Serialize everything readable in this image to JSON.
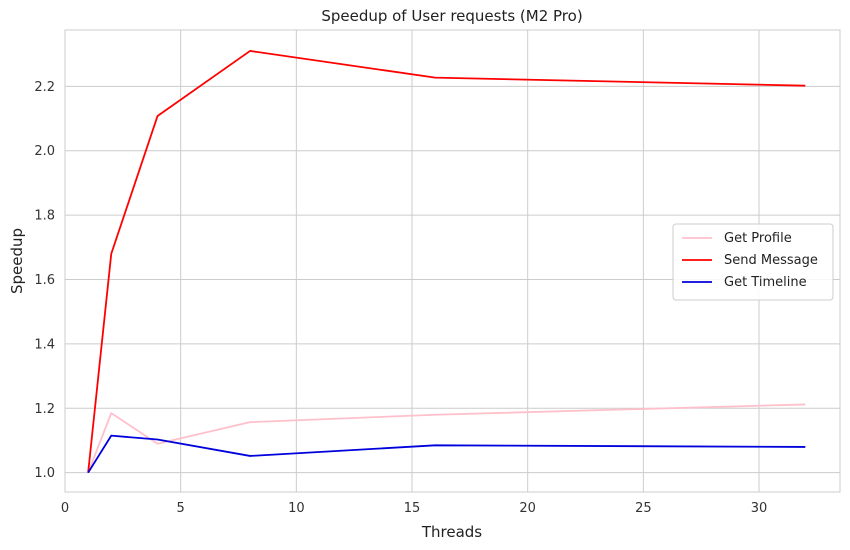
{
  "chart_data": {
    "type": "line",
    "title": "Speedup of User requests (M2 Pro)",
    "xlabel": "Threads",
    "ylabel": "Speedup",
    "xlim": [
      0,
      33.5
    ],
    "ylim": [
      0.94,
      2.375
    ],
    "xticks": [
      0,
      5,
      10,
      15,
      20,
      25,
      30
    ],
    "yticks": [
      1.0,
      1.2,
      1.4,
      1.6,
      1.8,
      2.0,
      2.2
    ],
    "grid": true,
    "legend_position": "center-right",
    "x": [
      1,
      2,
      4,
      8,
      16,
      32
    ],
    "series": [
      {
        "name": "Get Profile",
        "color": "#ffc0cb",
        "values": [
          1.0,
          1.185,
          1.09,
          1.157,
          1.18,
          1.212
        ]
      },
      {
        "name": "Send Message",
        "color": "#ff0000",
        "values": [
          1.0,
          1.68,
          2.108,
          2.31,
          2.227,
          2.202
        ]
      },
      {
        "name": "Get Timeline",
        "color": "#0000dd",
        "values": [
          1.0,
          1.115,
          1.103,
          1.052,
          1.085,
          1.08
        ]
      }
    ]
  }
}
